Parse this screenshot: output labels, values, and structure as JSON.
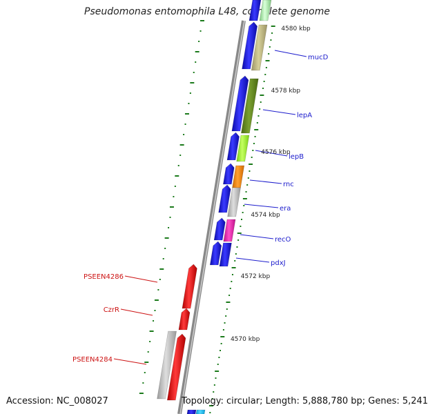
{
  "title": "Pseudomonas entomophila L48, complete genome",
  "footer": {
    "accession": "Accession: NC_008027",
    "topology": "Topology: circular; Length: 5,888,780 bp; Genes: 5,241"
  },
  "colors": {
    "backbone": "#8a8a8a",
    "tick": "#1a7a1a",
    "gene_label_plus": "#1a1acc",
    "gene_label_minus": "#cc1111",
    "blue_gene": "#1414e0",
    "red_gene": "#ee1111"
  },
  "scale_labels": [
    "4580 kbp",
    "4578 kbp",
    "4576 kbp",
    "4574 kbp",
    "4572 kbp",
    "4570 kbp"
  ],
  "gene_labels_forward": [
    "mucD",
    "lepA",
    "lepB",
    "rnc",
    "era",
    "recO",
    "pdxJ"
  ],
  "gene_labels_reverse": [
    "PSEEN4286",
    "CzrR",
    "PSEEN4284"
  ]
}
